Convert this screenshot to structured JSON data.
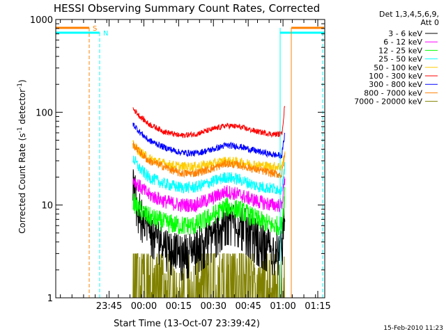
{
  "chart_data": {
    "type": "line",
    "title": "HESSI Observing Summary Count Rates, Corrected",
    "xlabel": "Start Time (13-Oct-07 23:39:42)",
    "ylabel_main": "Corrected Count Rate (s",
    "ylabel_sup1": "-1",
    "ylabel_mid": " detector",
    "ylabel_sup2": "-1",
    "ylabel_end": ")",
    "yscale": "log",
    "ylim": [
      1,
      1000
    ],
    "xlim_minutes": [
      -17,
      99
    ],
    "x_ticks": [
      {
        "m": 6,
        "label": "23:45"
      },
      {
        "m": 21,
        "label": "00:00"
      },
      {
        "m": 36,
        "label": "00:15"
      },
      {
        "m": 51,
        "label": "00:30"
      },
      {
        "m": 66,
        "label": "00:45"
      },
      {
        "m": 81,
        "label": "01:00"
      },
      {
        "m": 96,
        "label": "01:15"
      }
    ],
    "y_ticks": [
      {
        "v": 1,
        "label": "1"
      },
      {
        "v": 10,
        "label": "10"
      },
      {
        "v": 100,
        "label": "100"
      },
      {
        "v": 1000,
        "label": "1000"
      }
    ],
    "legend_header": [
      "Det 1,3,4,5,6,9,",
      "Att 0"
    ],
    "legend_placement": "right",
    "flag_labels": {
      "S": "S",
      "N": "N"
    },
    "footer_date": "15-Feb-2010 11:23",
    "series": [
      {
        "name": "3 - 6 keV",
        "color": "#000000",
        "anchors": [
          [
            0,
            17
          ],
          [
            2,
            9
          ],
          [
            5,
            6
          ],
          [
            10,
            4
          ],
          [
            15,
            3
          ],
          [
            20,
            3.5
          ],
          [
            26,
            5
          ],
          [
            30,
            7.5
          ],
          [
            34,
            7
          ],
          [
            40,
            4.5
          ],
          [
            45,
            3.5
          ],
          [
            48,
            3.5
          ],
          [
            49,
            10
          ]
        ]
      },
      {
        "name": "6 - 12 keV",
        "color": "#ff00ff",
        "anchors": [
          [
            0,
            19
          ],
          [
            2,
            16
          ],
          [
            5,
            13
          ],
          [
            10,
            11
          ],
          [
            15,
            10
          ],
          [
            20,
            10
          ],
          [
            26,
            12
          ],
          [
            30,
            14
          ],
          [
            34,
            13
          ],
          [
            40,
            11
          ],
          [
            45,
            10
          ],
          [
            48,
            10
          ],
          [
            49,
            20
          ]
        ]
      },
      {
        "name": "12 - 25 keV",
        "color": "#00ff00",
        "anchors": [
          [
            0,
            11
          ],
          [
            2,
            9
          ],
          [
            5,
            7.5
          ],
          [
            10,
            6.5
          ],
          [
            15,
            6
          ],
          [
            20,
            6
          ],
          [
            26,
            7.8
          ],
          [
            30,
            9.5
          ],
          [
            34,
            9
          ],
          [
            40,
            7
          ],
          [
            45,
            6
          ],
          [
            48,
            6
          ],
          [
            49,
            14
          ]
        ]
      },
      {
        "name": "25 - 50 keV",
        "color": "#00ffff",
        "anchors": [
          [
            0,
            32
          ],
          [
            2,
            25
          ],
          [
            5,
            20
          ],
          [
            10,
            17
          ],
          [
            15,
            15.5
          ],
          [
            20,
            15.5
          ],
          [
            26,
            18
          ],
          [
            30,
            20
          ],
          [
            34,
            19
          ],
          [
            40,
            16
          ],
          [
            45,
            15
          ],
          [
            48,
            15
          ],
          [
            49,
            25
          ]
        ]
      },
      {
        "name": "50 - 100 keV",
        "color": "#ffcc00",
        "anchors": [
          [
            0,
            45
          ],
          [
            2,
            38
          ],
          [
            5,
            32
          ],
          [
            10,
            28
          ],
          [
            15,
            26
          ],
          [
            20,
            26
          ],
          [
            26,
            28
          ],
          [
            30,
            30
          ],
          [
            34,
            29
          ],
          [
            40,
            27
          ],
          [
            45,
            26
          ],
          [
            48,
            26
          ],
          [
            49,
            35
          ]
        ]
      },
      {
        "name": "100 - 300 keV",
        "color": "#ff0000",
        "anchors": [
          [
            0,
            110
          ],
          [
            2,
            92
          ],
          [
            5,
            75
          ],
          [
            10,
            62
          ],
          [
            15,
            56
          ],
          [
            20,
            58
          ],
          [
            26,
            66
          ],
          [
            30,
            72
          ],
          [
            34,
            70
          ],
          [
            40,
            62
          ],
          [
            45,
            58
          ],
          [
            48,
            58
          ],
          [
            49,
            120
          ]
        ]
      },
      {
        "name": "300 - 800 keV",
        "color": "#0000ff",
        "anchors": [
          [
            0,
            75
          ],
          [
            2,
            62
          ],
          [
            5,
            50
          ],
          [
            10,
            42
          ],
          [
            15,
            37
          ],
          [
            20,
            36
          ],
          [
            26,
            40
          ],
          [
            30,
            44
          ],
          [
            34,
            43
          ],
          [
            40,
            38
          ],
          [
            45,
            35
          ],
          [
            48,
            34
          ],
          [
            49,
            60
          ]
        ]
      },
      {
        "name": "800 - 7000 keV",
        "color": "#ff8000",
        "anchors": [
          [
            0,
            45
          ],
          [
            2,
            38
          ],
          [
            5,
            30
          ],
          [
            10,
            26
          ],
          [
            15,
            22
          ],
          [
            20,
            22
          ],
          [
            26,
            25
          ],
          [
            30,
            28
          ],
          [
            34,
            27
          ],
          [
            40,
            24
          ],
          [
            45,
            22
          ],
          [
            48,
            21
          ],
          [
            49,
            35
          ]
        ]
      },
      {
        "name": "7000 - 20000 keV",
        "color": "#808000",
        "anchors": [
          [
            0,
            2.5
          ],
          [
            3,
            2
          ],
          [
            6,
            1.5
          ],
          [
            10,
            1.2
          ],
          [
            15,
            1
          ],
          [
            20,
            1.2
          ],
          [
            25,
            1.6
          ],
          [
            30,
            2
          ],
          [
            35,
            1.8
          ],
          [
            40,
            1.4
          ],
          [
            45,
            1.2
          ],
          [
            49,
            1.5
          ]
        ]
      }
    ]
  }
}
